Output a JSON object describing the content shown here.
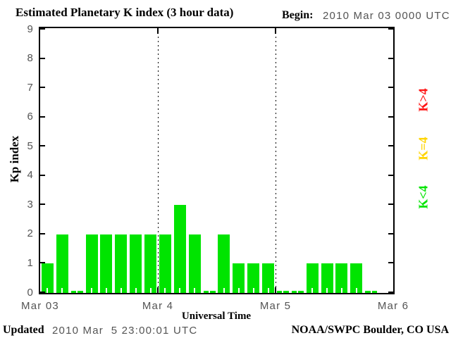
{
  "header": {
    "title": "Estimated Planetary K index (3 hour data)",
    "begin_label": "Begin:",
    "begin_value": "2010 Mar 03 0000 UTC"
  },
  "footer": {
    "updated_label": "Updated",
    "updated_value": "2010 Mar  5 23:00:01 UTC",
    "credit": "NOAA/SWPC Boulder, CO USA"
  },
  "chart_data": {
    "type": "bar",
    "title": "Estimated Planetary K index (3 hour data)",
    "xlabel": "Universal Time",
    "ylabel": "Kp index",
    "ylim": [
      0,
      9
    ],
    "y_ticks": [
      0,
      1,
      2,
      3,
      4,
      5,
      6,
      7,
      8,
      9
    ],
    "x_ticks": [
      "Mar 03",
      "Mar 4",
      "Mar 5",
      "Mar 6"
    ],
    "bars_per_day": 8,
    "bar_interval_hours": 3,
    "day_separators": [
      "Mar 4",
      "Mar 5"
    ],
    "grid": "dotted vertical lines at day boundaries",
    "legend_position": "right, rotated 90deg",
    "values": [
      1,
      2,
      0,
      2,
      2,
      2,
      2,
      2,
      2,
      3,
      2,
      0,
      2,
      1,
      1,
      1,
      0,
      0,
      1,
      1,
      1,
      1,
      0,
      null
    ],
    "colors": {
      "k_lt4": "#00e400",
      "k_eq4": "#ffd400",
      "k_gt4": "#ff1414"
    },
    "legend": [
      {
        "label": "K>4",
        "color": "#ff1414"
      },
      {
        "label": "K=4",
        "color": "#ffd400"
      },
      {
        "label": "K<4",
        "color": "#00e400"
      }
    ]
  }
}
